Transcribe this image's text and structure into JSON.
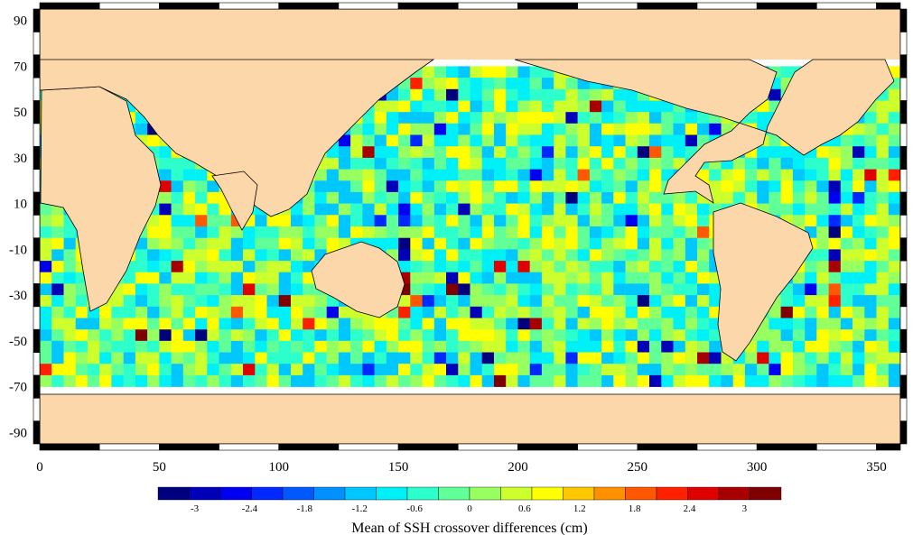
{
  "map": {
    "lon_range": [
      0,
      360
    ],
    "lat_range": [
      -95,
      95
    ],
    "data_lat_range": [
      -70,
      70
    ],
    "x_ticks": [
      "0",
      "50",
      "100",
      "150",
      "200",
      "250",
      "300",
      "350"
    ],
    "x_tick_values": [
      0,
      50,
      100,
      150,
      200,
      250,
      300,
      350
    ],
    "y_ticks": [
      "90",
      "70",
      "50",
      "30",
      "10",
      "-10",
      "-30",
      "-50",
      "-70",
      "-90"
    ],
    "y_tick_values": [
      90,
      70,
      50,
      30,
      10,
      -10,
      -30,
      -50,
      -70,
      -90
    ],
    "land_color": "#fcd7a9",
    "frame_style": "alternating black/white graticule border"
  },
  "colorbar": {
    "title": "Mean of SSH crossover differences (cm)",
    "range": [
      -3.4,
      3.4
    ],
    "tick_labels": [
      "-3",
      "-2.4",
      "-1.8",
      "-1.2",
      "-0.6",
      "0",
      "0.6",
      "1.2",
      "1.8",
      "2.4",
      "3"
    ],
    "tick_values": [
      -3,
      -2.4,
      -1.8,
      -1.2,
      -0.6,
      0,
      0.6,
      1.2,
      1.8,
      2.4,
      3
    ],
    "colormap": "jet",
    "colors": [
      "#00007f",
      "#0000b8",
      "#0000f0",
      "#0028ff",
      "#0058ff",
      "#0090ff",
      "#00c8ff",
      "#00f0f8",
      "#2cffcc",
      "#60ff98",
      "#98ff60",
      "#ccff2c",
      "#ffff00",
      "#ffc800",
      "#ff9000",
      "#ff5800",
      "#ff2000",
      "#e00000",
      "#a80000",
      "#7f0000"
    ]
  }
}
